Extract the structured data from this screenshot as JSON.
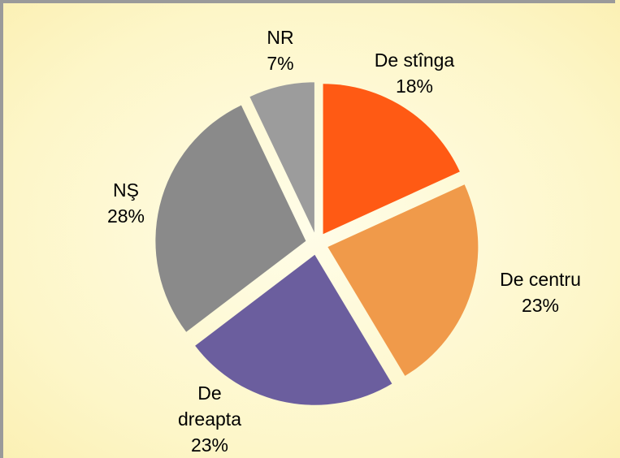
{
  "chart_data": {
    "type": "pie",
    "categories": [
      "De stînga",
      "De centru",
      "De dreapta",
      "NŞ",
      "NR"
    ],
    "values": [
      18,
      23,
      23,
      28,
      7
    ],
    "value_labels": [
      "18%",
      "23%",
      "23%",
      "28%",
      "7%"
    ],
    "colors": [
      "#ff5a14",
      "#f09a4a",
      "#6b5e9e",
      "#8a8a8a",
      "#9c9c9c"
    ]
  }
}
